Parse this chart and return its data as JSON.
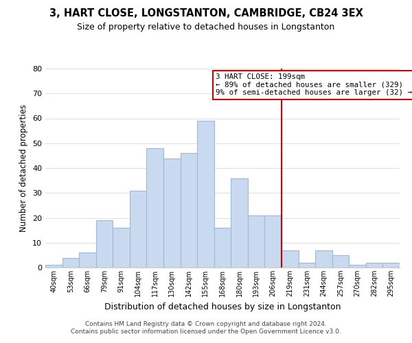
{
  "title": "3, HART CLOSE, LONGSTANTON, CAMBRIDGE, CB24 3EX",
  "subtitle": "Size of property relative to detached houses in Longstanton",
  "xlabel": "Distribution of detached houses by size in Longstanton",
  "ylabel": "Number of detached properties",
  "footer_line1": "Contains HM Land Registry data © Crown copyright and database right 2024.",
  "footer_line2": "Contains public sector information licensed under the Open Government Licence v3.0.",
  "bar_labels": [
    "40sqm",
    "53sqm",
    "66sqm",
    "79sqm",
    "91sqm",
    "104sqm",
    "117sqm",
    "130sqm",
    "142sqm",
    "155sqm",
    "168sqm",
    "180sqm",
    "193sqm",
    "206sqm",
    "219sqm",
    "231sqm",
    "244sqm",
    "257sqm",
    "270sqm",
    "282sqm",
    "295sqm"
  ],
  "bar_values": [
    1,
    4,
    6,
    19,
    16,
    31,
    48,
    44,
    46,
    59,
    16,
    36,
    21,
    21,
    7,
    2,
    7,
    5,
    1,
    2,
    2
  ],
  "bar_color": "#c8d9f0",
  "bar_edge_color": "#a0b8d8",
  "grid_color": "#e0e0e0",
  "reference_line_x": 13.5,
  "reference_line_color": "#cc0000",
  "annotation_box_text": "3 HART CLOSE: 199sqm\n← 89% of detached houses are smaller (329)\n9% of semi-detached houses are larger (32) →",
  "ylim": [
    0,
    80
  ],
  "yticks": [
    0,
    10,
    20,
    30,
    40,
    50,
    60,
    70,
    80
  ],
  "background_color": "#ffffff"
}
